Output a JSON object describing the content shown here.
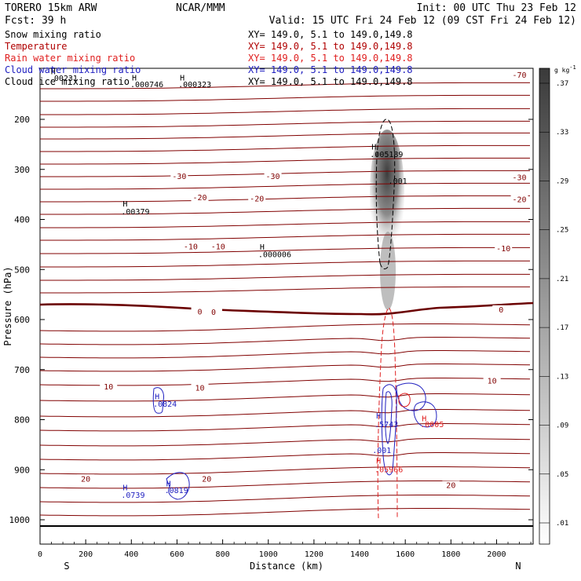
{
  "header": {
    "left_line1": "TORERO  15km ARW",
    "center_line1": "NCAR/MMM",
    "right_line1": "Init: 00 UTC Thu 23 Feb 12",
    "left_line2": "Fcst:   39 h",
    "right_line2": "Valid: 15 UTC Fri 24 Feb 12 (09 CST Fri 24 Feb 12)"
  },
  "fields": [
    {
      "name": "Snow mixing ratio",
      "xy": "XY= 149.0,  5.1 to 149.0,149.8",
      "color": "#000000",
      "xy_color": "#000000"
    },
    {
      "name": "Temperature",
      "xy": "XY= 149.0,  5.1 to 149.0,149.8",
      "color": "#b00000",
      "xy_color": "#b00000"
    },
    {
      "name": "Rain water mixing ratio",
      "xy": "XY= 149.0,  5.1 to 149.0,149.8",
      "color": "#e02020",
      "xy_color": "#e02020"
    },
    {
      "name": "Cloud water mixing ratio",
      "xy": "XY= 149.0,  5.1 to 149.0,149.8",
      "color": "#2020c0",
      "xy_color": "#2020c0"
    },
    {
      "name": "Cloud ice mixing ratio",
      "xy": "XY= 149.0,  5.1 to 149.0,149.8",
      "color": "#000000",
      "xy_color": "#000000"
    }
  ],
  "colorbar": {
    "unit": "g kg",
    "unit_exp": "-1",
    "labels": [
      ".37",
      ".33",
      ".29",
      ".25",
      ".21",
      ".17",
      ".13",
      ".09",
      ".05",
      ".01"
    ]
  },
  "chart_data": {
    "type": "cross-section contour",
    "xlabel": "Distance (km)",
    "ylabel": "Pressure (hPa)",
    "xlim": [
      0,
      2160
    ],
    "ylim": [
      1040,
      100
    ],
    "x_ticks": [
      0,
      200,
      400,
      600,
      800,
      1000,
      1200,
      1400,
      1600,
      1800,
      2000
    ],
    "y_ticks": [
      200,
      300,
      400,
      500,
      600,
      700,
      800,
      900,
      1000
    ],
    "x_end_labels": {
      "left": "S",
      "right": "N"
    },
    "temperature_labels": [
      {
        "x": 2100,
        "p": 115,
        "text": "-70"
      },
      {
        "x": 610,
        "p": 318,
        "text": "-30"
      },
      {
        "x": 1020,
        "p": 318,
        "text": "-30"
      },
      {
        "x": 2100,
        "p": 320,
        "text": "-30"
      },
      {
        "x": 700,
        "p": 360,
        "text": "-20"
      },
      {
        "x": 950,
        "p": 362,
        "text": "-20"
      },
      {
        "x": 2100,
        "p": 364,
        "text": "-20"
      },
      {
        "x": 660,
        "p": 458,
        "text": "-10"
      },
      {
        "x": 780,
        "p": 458,
        "text": "-10"
      },
      {
        "x": 2030,
        "p": 462,
        "text": "-10"
      },
      {
        "x": 700,
        "p": 588,
        "text": "0"
      },
      {
        "x": 760,
        "p": 589,
        "text": "0"
      },
      {
        "x": 2020,
        "p": 584,
        "text": "0"
      },
      {
        "x": 300,
        "p": 738,
        "text": "10"
      },
      {
        "x": 700,
        "p": 740,
        "text": "10"
      },
      {
        "x": 1980,
        "p": 726,
        "text": "10"
      },
      {
        "x": 200,
        "p": 922,
        "text": "20"
      },
      {
        "x": 730,
        "p": 922,
        "text": "20"
      },
      {
        "x": 1800,
        "p": 935,
        "text": "20"
      }
    ],
    "max_labels": [
      {
        "x": 75,
        "p": 123,
        "h_p": 110,
        "text": ".00231",
        "series": "snow"
      },
      {
        "x": 430,
        "p": 136,
        "h_p": 122,
        "text": ".000746",
        "series": "snow"
      },
      {
        "x": 640,
        "p": 136,
        "h_p": 122,
        "text": ".000323",
        "series": "snow"
      },
      {
        "x": 390,
        "p": 390,
        "h_p": 374,
        "text": ".00379",
        "series": "snow"
      },
      {
        "x": 990,
        "p": 475,
        "h_p": 460,
        "text": ".000006",
        "series": "snow"
      },
      {
        "x": 1480,
        "p": 275,
        "h_p": 260,
        "text": ".005189",
        "series": "snow"
      },
      {
        "x": 1560,
        "p": 329,
        "h_p": null,
        "text": ".001",
        "series": "ice"
      },
      {
        "x": 530,
        "p": 774,
        "h_p": 759,
        "text": ".0824",
        "series": "cloud"
      },
      {
        "x": 1500,
        "p": 815,
        "h_p": 798,
        "text": ".5743",
        "series": "cloud"
      },
      {
        "x": 1490,
        "p": 867,
        "h_p": null,
        "text": ".001",
        "series": "cloud"
      },
      {
        "x": 1700,
        "p": 815,
        "h_p": 803,
        "text": ".0005",
        "series": "rain"
      },
      {
        "x": 1500,
        "p": 905,
        "h_p": 888,
        "text": ".05966",
        "series": "rain"
      },
      {
        "x": 390,
        "p": 956,
        "h_p": 941,
        "text": ".0739",
        "series": "cloud"
      },
      {
        "x": 580,
        "p": 947,
        "h_p": 933,
        "text": ".0819",
        "series": "cloud"
      }
    ],
    "snow_shading": {
      "x_center": 1525,
      "p_top": 200,
      "p_bottom": 585,
      "max": 0.37
    }
  }
}
